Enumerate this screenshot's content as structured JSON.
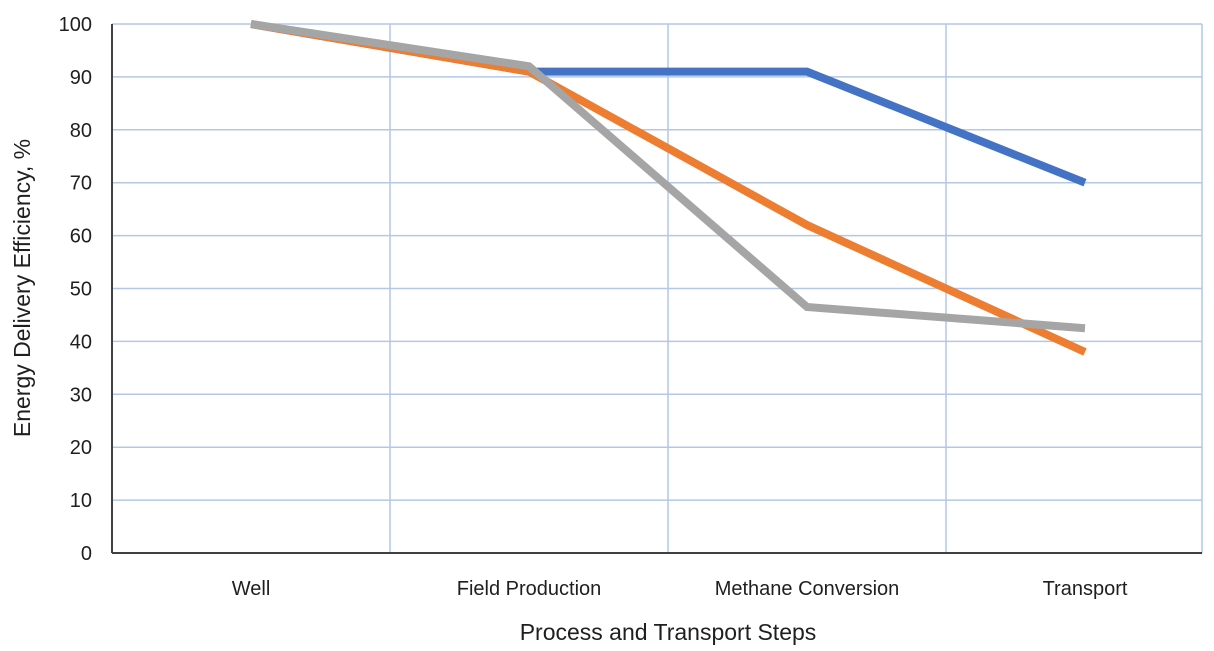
{
  "chart_data": {
    "type": "line",
    "title": "",
    "xlabel": "Process and Transport Steps",
    "ylabel": "Energy Delivery Efficiency, %",
    "ylim": [
      0,
      100
    ],
    "y_ticks": [
      0,
      10,
      20,
      30,
      40,
      50,
      60,
      70,
      80,
      90,
      100
    ],
    "grid": true,
    "legend": "none",
    "x_positions": [
      0,
      0.5,
      1,
      1.5,
      2,
      2.5,
      3
    ],
    "categories": [
      "Well",
      "Field Production",
      "Methane Conversion",
      "Transport"
    ],
    "category_positions": [
      0,
      1,
      2,
      3
    ],
    "series": [
      {
        "color": "#4472C4",
        "x": [
          0,
          1,
          2,
          3
        ],
        "values": [
          100,
          91,
          91,
          70
        ]
      },
      {
        "color": "#ED7D31",
        "x": [
          0,
          1,
          2,
          3
        ],
        "values": [
          100,
          91,
          62,
          38
        ]
      },
      {
        "color": "#A5A5A5",
        "x": [
          0,
          1,
          2,
          3
        ],
        "values": [
          100,
          92,
          46.5,
          42.5
        ]
      }
    ],
    "colors": {
      "grid": "#B4C7E7",
      "axis": "#404040",
      "text": "#1f1f1f"
    }
  }
}
